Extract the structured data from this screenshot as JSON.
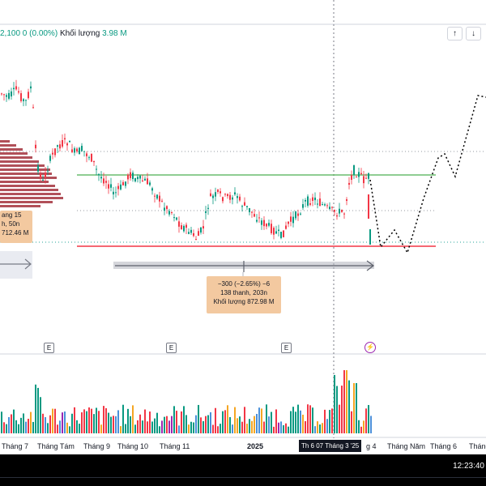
{
  "legend": {
    "change_text": "2,100  0 (0.00%)",
    "volume_label": "Khối lượng",
    "volume_value": "3.98 M"
  },
  "toolbar": {
    "up_icon": "arrow-up-icon",
    "down_icon": "arrow-down-icon"
  },
  "measure_left": {
    "line1": "ang 15",
    "line2": "h, 50n",
    "line3": "712.46 M"
  },
  "measure_main": {
    "line1": "−300 (−2.65%) −6",
    "line2": "138 thanh, 203n",
    "line3": "Khối lượng 872.98 M"
  },
  "event_badge": "E",
  "xaxis": {
    "labels": [
      "Tháng 7",
      "Tháng Tám",
      "Tháng 9",
      "Tháng 10",
      "Tháng 11",
      "2025",
      "g 4",
      "Tháng Năm",
      "Tháng 6",
      "Tháng"
    ],
    "cursor_label": "Th 6 07 Tháng 3 '25"
  },
  "clock": "12:23:40",
  "colors": {
    "up": "#089981",
    "down": "#f23645",
    "support": "#f23645",
    "resistance": "#4caf50",
    "measure_tag": "#f3c9a0",
    "projection": "#000000"
  }
}
